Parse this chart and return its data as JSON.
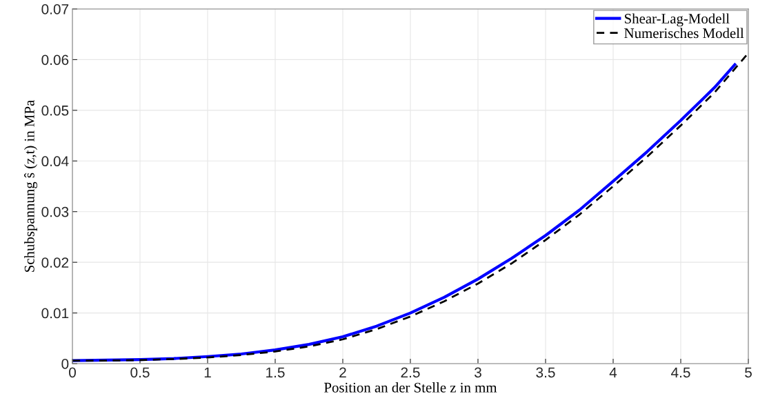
{
  "chart_data": {
    "type": "line",
    "xlabel": "Position an der Stelle z in mm",
    "ylabel": "Schubspannung ŝ (z,t) in MPa",
    "x": [
      0,
      0.25,
      0.5,
      0.75,
      1,
      1.25,
      1.5,
      1.75,
      2,
      2.25,
      2.5,
      2.75,
      3,
      3.25,
      3.5,
      3.75,
      4,
      4.25,
      4.5,
      4.75,
      4.9,
      5
    ],
    "series": [
      {
        "name": "Shear-Lag-Modell",
        "color": "#0000ff",
        "line_style": "solid",
        "values": [
          0.0006,
          0.0007,
          0.0008,
          0.001,
          0.0014,
          0.0019,
          0.0027,
          0.0038,
          0.0053,
          0.0074,
          0.01,
          0.0131,
          0.0167,
          0.0208,
          0.0253,
          0.0303,
          0.036,
          0.0418,
          0.048,
          0.0545,
          0.059,
          null
        ]
      },
      {
        "name": "Numerisches Modell",
        "color": "#000000",
        "line_style": "dashed",
        "values": [
          0.0006,
          0.0006,
          0.0007,
          0.0009,
          0.0012,
          0.0017,
          0.0024,
          0.0034,
          0.0048,
          0.0068,
          0.0093,
          0.0123,
          0.0158,
          0.0198,
          0.0244,
          0.0294,
          0.035,
          0.0408,
          0.047,
          0.0535,
          0.0582,
          0.0613
        ]
      }
    ],
    "xlim": [
      0,
      5
    ],
    "xticks": [
      0,
      0.5,
      1,
      1.5,
      2,
      2.5,
      3,
      3.5,
      4,
      4.5,
      5
    ],
    "ylim": [
      0,
      0.07
    ],
    "yticks": [
      0,
      0.01,
      0.02,
      0.03,
      0.04,
      0.05,
      0.06,
      0.07
    ],
    "grid": true,
    "legend": "top right"
  }
}
